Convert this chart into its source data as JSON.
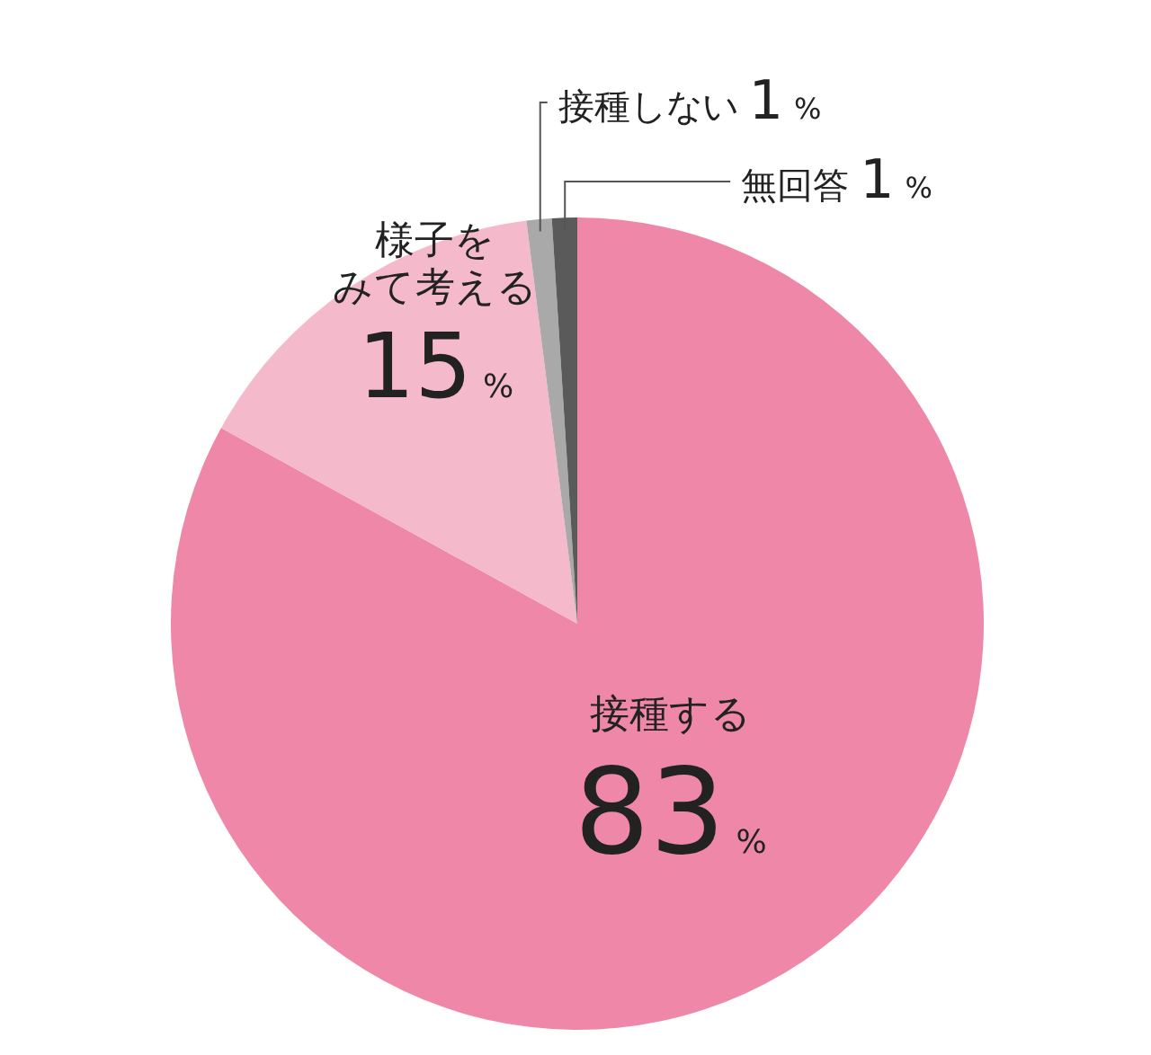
{
  "chart_data": {
    "type": "pie",
    "categories": [
      "接種する",
      "様子をみて考える",
      "接種しない",
      "無回答"
    ],
    "values": [
      83,
      15,
      1,
      1
    ],
    "colors": [
      "#ee87a8",
      "#f5b9cc",
      "#a9a9a9",
      "#5a5a5a"
    ],
    "value_labels": [
      "83%",
      "15%",
      "1%",
      "1%"
    ]
  }
}
